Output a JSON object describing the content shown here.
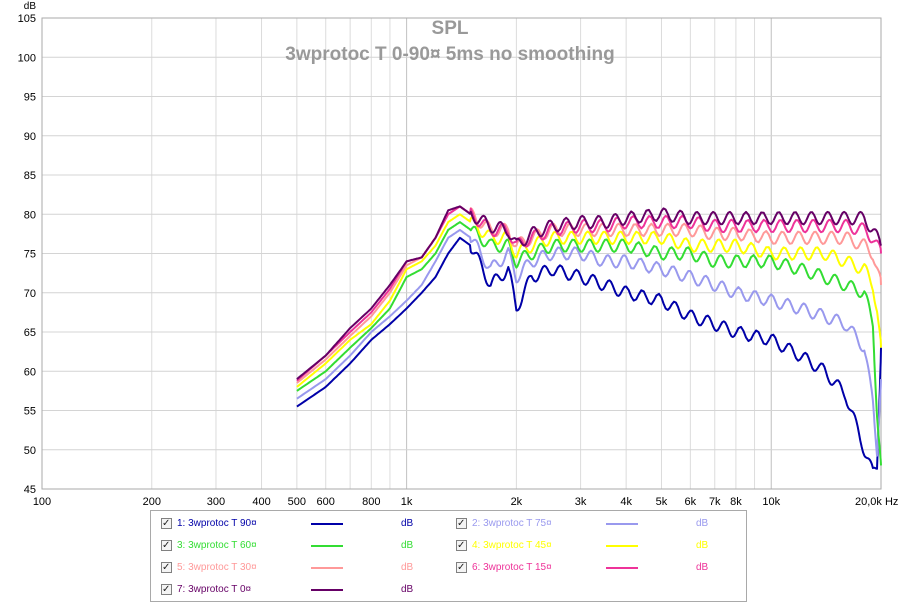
{
  "chart_data": {
    "type": "line",
    "title": "SPL",
    "subtitle": "3wprotoc T 0-90¤ 5ms no smoothing",
    "ylabel": "dB",
    "xunit": "Hz",
    "xscale": "log",
    "xlim": [
      100,
      20000
    ],
    "ylim": [
      45,
      105
    ],
    "grid": true,
    "yticks": [
      "45",
      "50",
      "55",
      "60",
      "65",
      "70",
      "75",
      "80",
      "85",
      "90",
      "95",
      "100",
      "105"
    ],
    "xticks": [
      {
        "v": 100,
        "label": "100"
      },
      {
        "v": 200,
        "label": "200"
      },
      {
        "v": 300,
        "label": "300"
      },
      {
        "v": 400,
        "label": "400"
      },
      {
        "v": 500,
        "label": "500"
      },
      {
        "v": 600,
        "label": "600"
      },
      {
        "v": 800,
        "label": "800"
      },
      {
        "v": 1000,
        "label": "1k"
      },
      {
        "v": 2000,
        "label": "2k"
      },
      {
        "v": 3000,
        "label": "3k"
      },
      {
        "v": 4000,
        "label": "4k"
      },
      {
        "v": 5000,
        "label": "5k"
      },
      {
        "v": 6000,
        "label": "6k"
      },
      {
        "v": 7000,
        "label": "7k"
      },
      {
        "v": 8000,
        "label": "8k"
      },
      {
        "v": 10000,
        "label": "10k"
      },
      {
        "v": 20000,
        "label": "20,0k Hz"
      }
    ],
    "series": [
      {
        "name": "1: 3wprotoc T 90¤",
        "unit": "dB",
        "color": "#0000a8",
        "x": [
          500,
          600,
          700,
          800,
          900,
          1000,
          1100,
          1200,
          1300,
          1400,
          1500,
          1700,
          1900,
          2000,
          2200,
          2500,
          3000,
          3500,
          4000,
          5000,
          6000,
          7000,
          8000,
          10000,
          12000,
          14000,
          16000,
          18000,
          19000,
          19500,
          20000
        ],
        "y": [
          55.5,
          58,
          61,
          64,
          66,
          68,
          70,
          72,
          75,
          77,
          76,
          71,
          73,
          68,
          72,
          73,
          72,
          71,
          70,
          69,
          67,
          66,
          65,
          64,
          62,
          60,
          57,
          50,
          47,
          48,
          63
        ]
      },
      {
        "name": "2: 3wprotoc T 75¤",
        "unit": "dB",
        "color": "#9999ee",
        "x": [
          500,
          600,
          700,
          800,
          900,
          1000,
          1100,
          1200,
          1300,
          1400,
          1500,
          1700,
          1900,
          2000,
          2200,
          2500,
          3000,
          3500,
          4000,
          5000,
          6000,
          7000,
          8000,
          10000,
          12000,
          14000,
          16000,
          18000,
          19000,
          19500,
          20000
        ],
        "y": [
          56.5,
          59,
          62,
          65,
          67,
          69,
          71,
          74,
          77,
          78,
          77,
          73,
          75,
          72,
          74,
          75,
          75,
          74,
          74,
          73,
          72,
          71,
          70,
          69,
          68,
          67,
          66,
          63,
          56,
          50,
          59
        ]
      },
      {
        "name": "3: 3wprotoc T 60¤",
        "unit": "dB",
        "color": "#33dd33",
        "x": [
          500,
          600,
          700,
          800,
          900,
          1000,
          1100,
          1200,
          1300,
          1400,
          1500,
          1700,
          1900,
          2000,
          2200,
          2500,
          3000,
          3500,
          4000,
          5000,
          6000,
          7000,
          8000,
          10000,
          12000,
          14000,
          16000,
          18000,
          19000,
          19500,
          20000
        ],
        "y": [
          57.5,
          60,
          63,
          65.5,
          68,
          72,
          73,
          75,
          78,
          79,
          78,
          76,
          76,
          74,
          75,
          76,
          76,
          76,
          76,
          75,
          75,
          74,
          74,
          74,
          73,
          72,
          71,
          70,
          66,
          55,
          48
        ]
      },
      {
        "name": "4: 3wprotoc T 45¤",
        "unit": "dB",
        "color": "#ffff00",
        "x": [
          500,
          600,
          700,
          800,
          900,
          1000,
          1100,
          1200,
          1300,
          1400,
          1500,
          1700,
          1900,
          2000,
          2200,
          2500,
          3000,
          3500,
          4000,
          5000,
          6000,
          7000,
          8000,
          10000,
          12000,
          14000,
          16000,
          18000,
          19000,
          19500,
          20000
        ],
        "y": [
          58,
          61,
          64,
          66,
          69,
          73,
          74,
          76,
          79,
          80,
          79,
          77,
          77,
          75,
          76,
          77,
          77,
          77,
          77,
          77,
          76,
          76,
          76,
          75,
          75,
          75,
          74,
          73,
          71,
          68,
          63
        ]
      },
      {
        "name": "5: 3wprotoc  T 30¤",
        "unit": "dB",
        "color": "#ff9999",
        "x": [
          500,
          600,
          700,
          800,
          900,
          1000,
          1100,
          1200,
          1300,
          1400,
          1500,
          1700,
          1900,
          2000,
          2200,
          2500,
          3000,
          3500,
          4000,
          5000,
          6000,
          7000,
          8000,
          10000,
          12000,
          14000,
          16000,
          18000,
          19000,
          19500,
          20000
        ],
        "y": [
          58.5,
          61.5,
          64.5,
          67,
          70,
          73.5,
          74.5,
          77,
          80,
          81,
          80,
          78,
          78,
          76,
          77,
          78,
          78,
          78,
          78,
          78,
          78,
          77.5,
          77.5,
          77,
          77,
          77,
          77,
          76,
          75,
          73,
          71
        ]
      },
      {
        "name": "6: 3wprotoc T 15¤",
        "unit": "dB",
        "color": "#ee3399",
        "x": [
          500,
          600,
          700,
          800,
          900,
          1000,
          1100,
          1200,
          1300,
          1400,
          1500,
          1700,
          1900,
          2000,
          2200,
          2500,
          3000,
          3500,
          4000,
          5000,
          6000,
          7000,
          8000,
          10000,
          12000,
          14000,
          16000,
          18000,
          19000,
          19500,
          20000
        ],
        "y": [
          58.8,
          62,
          65,
          67.5,
          70.5,
          74,
          74.5,
          77,
          80,
          81,
          80,
          78,
          78,
          76,
          77,
          78,
          78.5,
          78.5,
          79,
          79,
          79,
          78.5,
          78.5,
          78.5,
          78.5,
          78.5,
          78.5,
          78,
          77,
          76,
          75
        ]
      },
      {
        "name": "7: 3wprotoc T 0¤",
        "unit": "dB",
        "color": "#660066",
        "x": [
          500,
          600,
          700,
          800,
          900,
          1000,
          1100,
          1200,
          1300,
          1400,
          1500,
          1700,
          1900,
          2000,
          2200,
          2500,
          3000,
          3500,
          4000,
          5000,
          6000,
          7000,
          8000,
          10000,
          12000,
          14000,
          16000,
          18000,
          19000,
          19500,
          20000
        ],
        "y": [
          59,
          62,
          65.5,
          68,
          71,
          74,
          74.5,
          77,
          80.5,
          81,
          80,
          78.5,
          78,
          76,
          77.5,
          78.5,
          79,
          79,
          79.5,
          80,
          79.5,
          79.5,
          79.5,
          79.5,
          79.5,
          79.5,
          79.5,
          79.5,
          78,
          77,
          76
        ]
      }
    ]
  }
}
